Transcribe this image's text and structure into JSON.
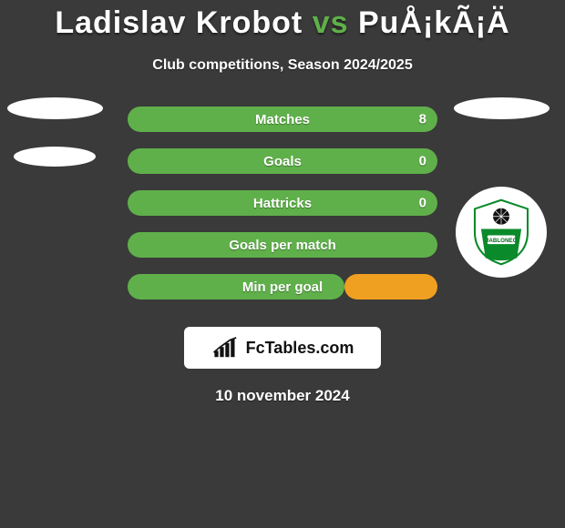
{
  "colors": {
    "background": "#3a3a3a",
    "accent": "#5fb04a",
    "bar_base": "#5fb04a",
    "bar_alt": "#f0a020",
    "white": "#ffffff",
    "text": "#ffffff"
  },
  "title": {
    "left": "Ladislav Krobot",
    "vs": "vs",
    "right": "PuÅ¡kÃ¡Ä"
  },
  "subtitle": "Club competitions, Season 2024/2025",
  "bars": [
    {
      "label": "Matches",
      "left": "",
      "right": "8",
      "left_pct": 0,
      "right_pct": 100,
      "left_color": "#5fb04a",
      "right_color": "#5fb04a"
    },
    {
      "label": "Goals",
      "left": "",
      "right": "0",
      "left_pct": 0,
      "right_pct": 100,
      "left_color": "#5fb04a",
      "right_color": "#5fb04a"
    },
    {
      "label": "Hattricks",
      "left": "",
      "right": "0",
      "left_pct": 0,
      "right_pct": 100,
      "left_color": "#5fb04a",
      "right_color": "#5fb04a"
    },
    {
      "label": "Goals per match",
      "left": "",
      "right": "",
      "left_pct": 0,
      "right_pct": 100,
      "left_color": "#5fb04a",
      "right_color": "#5fb04a"
    },
    {
      "label": "Min per goal",
      "left": "",
      "right": "",
      "left_pct": 70,
      "right_pct": 30,
      "left_color": "#5fb04a",
      "right_color": "#f0a020"
    }
  ],
  "brand": "FcTables.com",
  "date": "10 november 2024",
  "crest_label": "JABLONEC"
}
